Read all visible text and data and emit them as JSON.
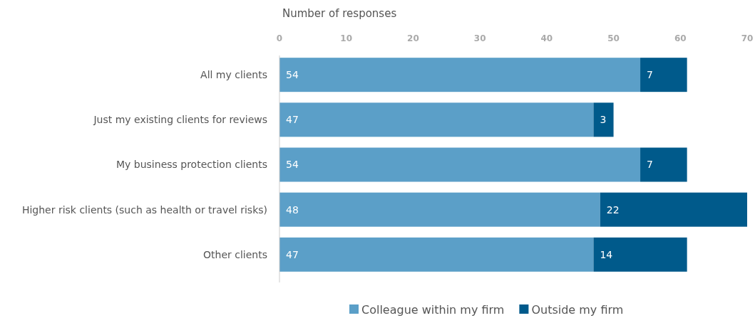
{
  "chart_data": {
    "type": "bar",
    "orientation": "horizontal",
    "stacked": true,
    "xlabel": "Number of responses",
    "categories": [
      "All my clients",
      "Just my existing clients for reviews",
      "My business protection clients",
      "Higher risk clients (such as health or travel risks)",
      "Other clients"
    ],
    "series": [
      {
        "name": "Colleague within my firm",
        "color": "#5b9fc8",
        "values": [
          54,
          47,
          54,
          48,
          47
        ]
      },
      {
        "name": "Outside my firm",
        "color": "#005a8b",
        "values": [
          7,
          3,
          7,
          22,
          14
        ]
      }
    ],
    "xlim": [
      0,
      70
    ],
    "xticks": [
      0,
      10,
      20,
      30,
      40,
      50,
      60,
      70
    ],
    "data_labels": true,
    "legend": "bottom",
    "grid": false
  }
}
